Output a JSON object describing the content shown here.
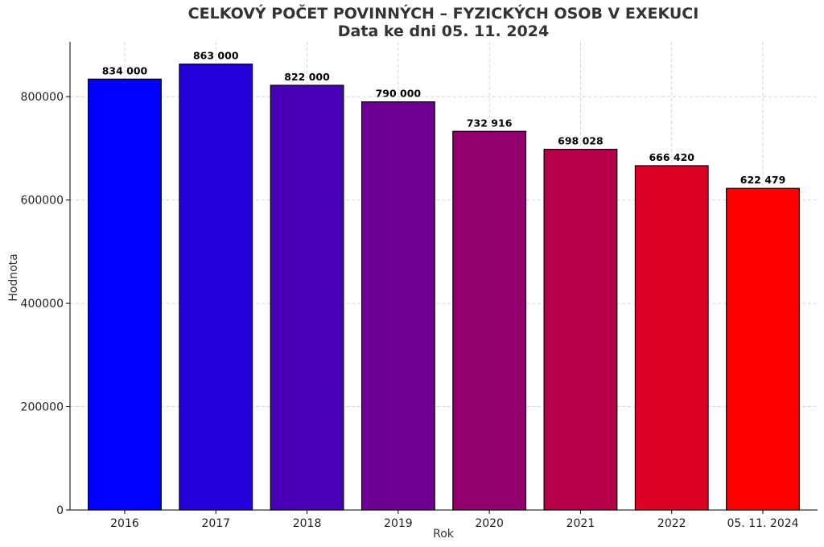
{
  "chart_data": {
    "type": "bar",
    "title": "CELKOVÝ POČET POVINNÝCH – FYZICKÝCH OSOB V EXEKUCI",
    "subtitle": "Data ke dni 05. 11. 2024",
    "xlabel": "Rok",
    "ylabel": "Hodnota",
    "categories": [
      "2016",
      "2017",
      "2018",
      "2019",
      "2020",
      "2021",
      "2022",
      "05. 11. 2024"
    ],
    "values": [
      834000,
      863000,
      822000,
      790000,
      732916,
      698028,
      666420,
      622479
    ],
    "value_labels": [
      "834 000",
      "863 000",
      "822 000",
      "790 000",
      "732 916",
      "698 028",
      "666 420",
      "622 479"
    ],
    "colors": [
      "#0000ff",
      "#2400db",
      "#4800b6",
      "#6d0092",
      "#91006d",
      "#b60048",
      "#db0024",
      "#ff0000"
    ],
    "yticks": [
      0,
      200000,
      400000,
      600000,
      800000
    ],
    "ytick_labels": [
      "0",
      "200000",
      "400000",
      "600000",
      "800000"
    ],
    "ylim": [
      0,
      906150
    ],
    "grid": true
  }
}
